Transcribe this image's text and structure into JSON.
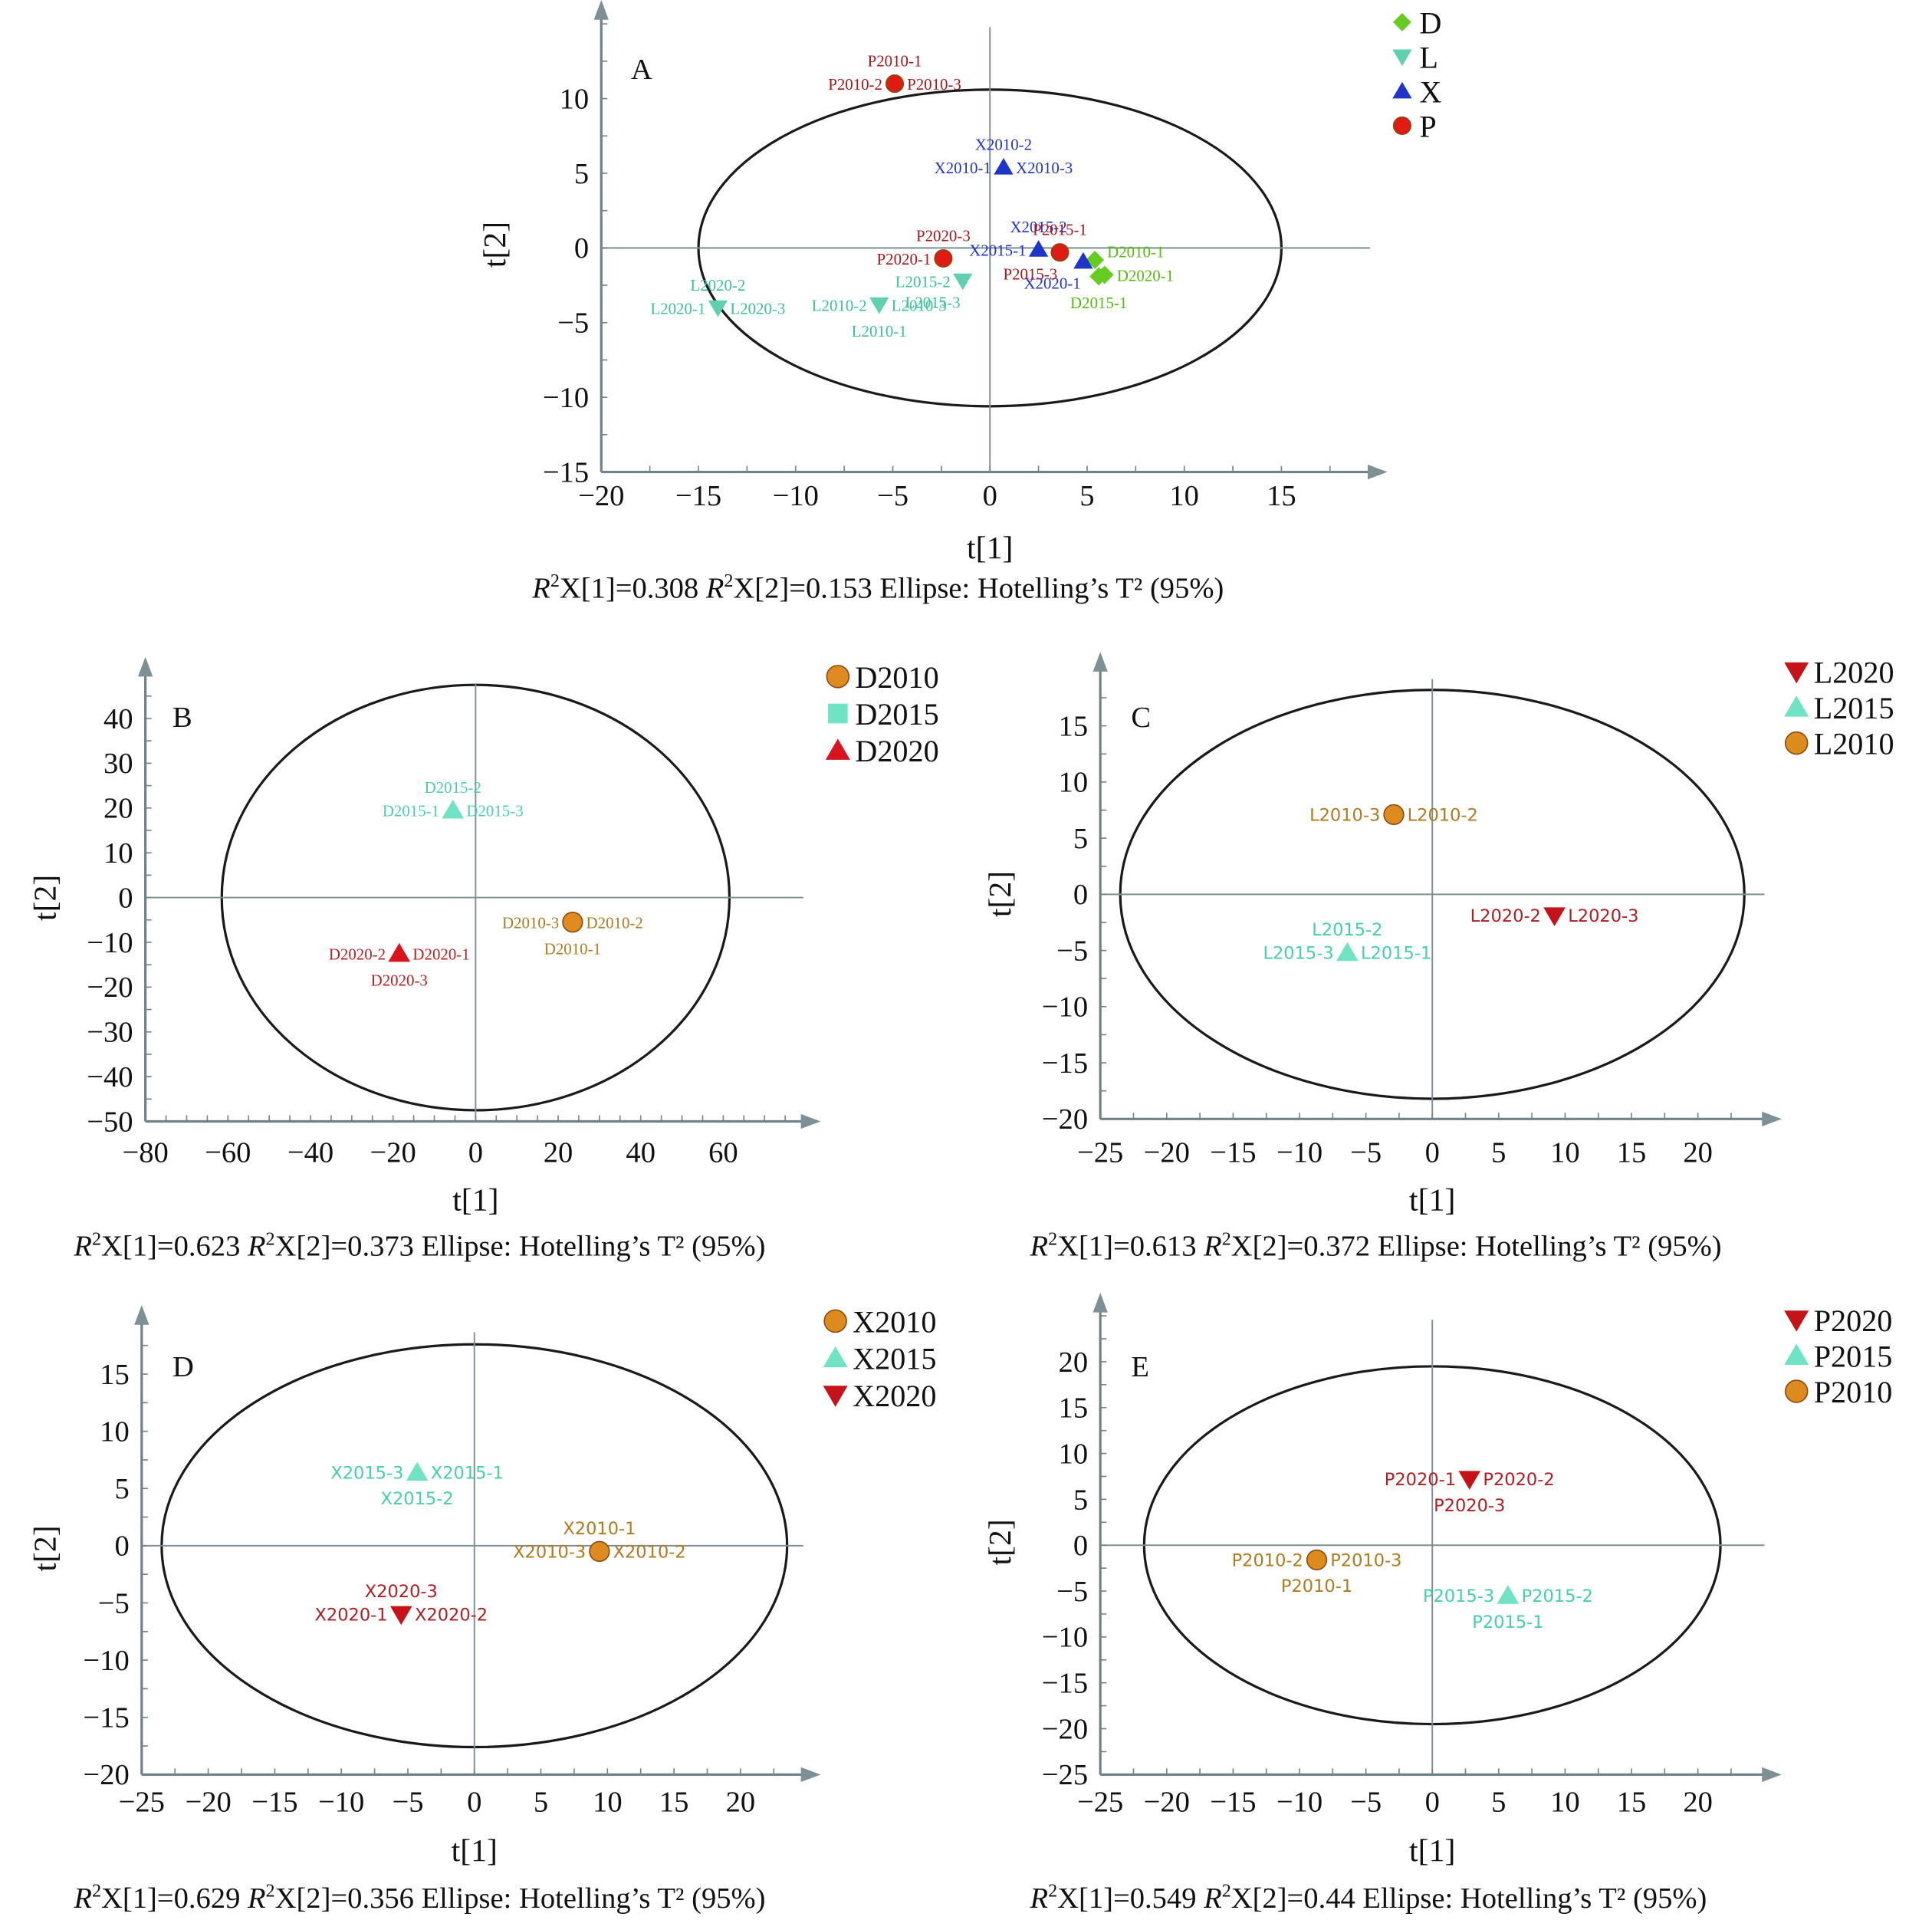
{
  "chart_data": [
    {
      "id": "A",
      "type": "scatter",
      "panel_label": "A",
      "xlabel": "t[1]",
      "ylabel": "t[2]",
      "xlim": [
        -20,
        19
      ],
      "ylim": [
        -15,
        14
      ],
      "xticks": [
        -20,
        -15,
        -10,
        -5,
        0,
        5,
        10,
        15
      ],
      "yticks": [
        -15,
        -10,
        -5,
        0,
        5,
        10
      ],
      "ellipse": {
        "rx": 15,
        "ry": 10.6
      },
      "caption": {
        "r2x1": "0.308",
        "r2x2": "0.153",
        "ellipse_text": "Ellipse: Hotelling’s T² (95%)"
      },
      "legend_position": "top-right",
      "label_font": "serif",
      "series": [
        {
          "name": "D",
          "marker": "diamond",
          "color": "#66cc22",
          "label_color": "#55bb11",
          "legend_marker": "diamond",
          "points": [
            {
              "x": 5.4,
              "y": -0.8,
              "labels": [
                {
                  "text": "D2010-1",
                  "pos": "right-up"
                }
              ]
            },
            {
              "x": 5.6,
              "y": -1.9,
              "labels": [
                {
                  "text": "D2015-1",
                  "pos": "below"
                }
              ]
            },
            {
              "x": 5.9,
              "y": -1.8,
              "labels": [
                {
                  "text": "D2020-1",
                  "pos": "right"
                }
              ]
            }
          ]
        },
        {
          "name": "L",
          "marker": "triangle-down",
          "color": "#5fd1b0",
          "label_color": "#3cc199",
          "legend_marker": "triangle-down",
          "points": [
            {
              "x": -14.0,
              "y": -4.0,
              "labels": [
                {
                  "text": "L2020-2",
                  "pos": "above"
                },
                {
                  "text": "L2020-1",
                  "pos": "left"
                },
                {
                  "text": "L2020-3",
                  "pos": "right"
                }
              ]
            },
            {
              "x": -5.7,
              "y": -3.8,
              "labels": [
                {
                  "text": "L2010-2",
                  "pos": "left"
                },
                {
                  "text": "L2010-3",
                  "pos": "right"
                },
                {
                  "text": "L2010-1",
                  "pos": "below"
                }
              ]
            },
            {
              "x": -1.4,
              "y": -2.2,
              "labels": [
                {
                  "text": "L2015-2",
                  "pos": "left"
                },
                {
                  "text": "L2015-3",
                  "pos": "below-left"
                }
              ]
            }
          ]
        },
        {
          "name": "X",
          "marker": "triangle-up",
          "color": "#1f35c8",
          "label_color": "#2233cc",
          "legend_marker": "triangle-up",
          "points": [
            {
              "x": 0.7,
              "y": 5.4,
              "labels": [
                {
                  "text": "X2010-2",
                  "pos": "above"
                },
                {
                  "text": "X2010-1",
                  "pos": "left"
                },
                {
                  "text": "X2010-3",
                  "pos": "right"
                }
              ]
            },
            {
              "x": 2.5,
              "y": -0.1,
              "labels": [
                {
                  "text": "X2015-1",
                  "pos": "left"
                },
                {
                  "text": "X2015-2",
                  "pos": "above"
                }
              ]
            },
            {
              "x": 4.8,
              "y": -0.9,
              "labels": [
                {
                  "text": "X2020-1",
                  "pos": "below-left"
                }
              ]
            }
          ]
        },
        {
          "name": "P",
          "marker": "circle",
          "color": "#e01b14",
          "label_color": "#a8161c",
          "legend_marker": "circle",
          "points": [
            {
              "x": -4.9,
              "y": 11.0,
              "labels": [
                {
                  "text": "P2010-1",
                  "pos": "above"
                },
                {
                  "text": "P2010-2",
                  "pos": "left"
                },
                {
                  "text": "P2010-3",
                  "pos": "right"
                }
              ]
            },
            {
              "x": -2.4,
              "y": -0.7,
              "labels": [
                {
                  "text": "P2020-3",
                  "pos": "above"
                },
                {
                  "text": "P2020-1",
                  "pos": "left"
                }
              ]
            },
            {
              "x": 3.6,
              "y": -0.3,
              "labels": [
                {
                  "text": "P2015-1",
                  "pos": "above"
                },
                {
                  "text": "P2015-3",
                  "pos": "below-left"
                }
              ]
            }
          ]
        }
      ]
    },
    {
      "id": "B",
      "type": "scatter",
      "panel_label": "B",
      "xlabel": "t[1]",
      "ylabel": "t[2]",
      "xlim": [
        -80,
        78
      ],
      "ylim": [
        -50,
        50
      ],
      "xticks": [
        -80,
        -60,
        -40,
        -20,
        0,
        20,
        40,
        60
      ],
      "yticks": [
        -50,
        -40,
        -30,
        -20,
        -10,
        0,
        10,
        20,
        30,
        40
      ],
      "ellipse": {
        "rx": 61.5,
        "ry": 47.5
      },
      "caption": {
        "r2x1": "0.623",
        "r2x2": "0.373",
        "ellipse_text": "Ellipse: Hotelling’s T² (95%)"
      },
      "legend_position": "top-right",
      "label_font": "serif",
      "series": [
        {
          "name": "D2010",
          "marker": "circle",
          "color": "#e08a22",
          "label_color": "#b07a1e",
          "legend_marker": "circle",
          "points": [
            {
              "x": 23.5,
              "y": -5.5,
              "labels": [
                {
                  "text": "D2010-3",
                  "pos": "left"
                },
                {
                  "text": "D2010-2",
                  "pos": "right"
                },
                {
                  "text": "D2010-1",
                  "pos": "below"
                }
              ]
            }
          ]
        },
        {
          "name": "D2015",
          "marker": "triangle-up",
          "color": "#6fe3c4",
          "label_color": "#4ccfae",
          "legend_marker": "square",
          "points": [
            {
              "x": -5.5,
              "y": 19.5,
              "labels": [
                {
                  "text": "D2015-2",
                  "pos": "above"
                },
                {
                  "text": "D2015-1",
                  "pos": "left"
                },
                {
                  "text": "D2015-3",
                  "pos": "right"
                }
              ]
            }
          ]
        },
        {
          "name": "D2020",
          "marker": "triangle-up",
          "color": "#d9141c",
          "label_color": "#b81f22",
          "legend_marker": "triangle-up",
          "points": [
            {
              "x": -18.5,
              "y": -12.5,
              "labels": [
                {
                  "text": "D2020-2",
                  "pos": "left"
                },
                {
                  "text": "D2020-1",
                  "pos": "right"
                },
                {
                  "text": "D2020-3",
                  "pos": "below"
                }
              ]
            }
          ]
        }
      ]
    },
    {
      "id": "C",
      "type": "scatter",
      "panel_label": "C",
      "xlabel": "t[1]",
      "ylabel": "t[2]",
      "xlim": [
        -25,
        24.5
      ],
      "ylim": [
        -20,
        19
      ],
      "xticks": [
        -25,
        -20,
        -15,
        -10,
        -5,
        0,
        5,
        10,
        15,
        20
      ],
      "yticks": [
        -20,
        -15,
        -10,
        -5,
        0,
        5,
        10,
        15
      ],
      "ellipse": {
        "rx": 23.5,
        "ry": 18.2
      },
      "caption": {
        "r2x1": "0.613",
        "r2x2": "0.372",
        "ellipse_text": "Ellipse: Hotelling’s T² (95%)"
      },
      "legend_position": "top-right",
      "label_font": "sans",
      "series": [
        {
          "name": "L2020",
          "marker": "triangle-down",
          "color": "#c41419",
          "label_color": "#b01d22",
          "legend_marker": "triangle-down",
          "points": [
            {
              "x": 9.2,
              "y": -1.9,
              "labels": [
                {
                  "text": "L2020-2",
                  "pos": "left"
                },
                {
                  "text": "L2020-3",
                  "pos": "right"
                }
              ]
            }
          ]
        },
        {
          "name": "L2015",
          "marker": "triangle-up",
          "color": "#6fe3c4",
          "label_color": "#45cfaa",
          "legend_marker": "triangle-up",
          "points": [
            {
              "x": -6.4,
              "y": -5.2,
              "labels": [
                {
                  "text": "L2015-2",
                  "pos": "above"
                },
                {
                  "text": "L2015-3",
                  "pos": "left"
                },
                {
                  "text": "L2015-1",
                  "pos": "right"
                }
              ]
            }
          ]
        },
        {
          "name": "L2010",
          "marker": "circle",
          "color": "#dd8a1e",
          "label_color": "#b07a1e",
          "legend_marker": "circle",
          "points": [
            {
              "x": -2.9,
              "y": 7.1,
              "labels": [
                {
                  "text": "L2010-3",
                  "pos": "left"
                },
                {
                  "text": "L2010-2",
                  "pos": "right"
                }
              ]
            }
          ]
        }
      ]
    },
    {
      "id": "D",
      "type": "scatter",
      "panel_label": "D",
      "xlabel": "t[1]",
      "ylabel": "t[2]",
      "xlim": [
        -25,
        24.5
      ],
      "ylim": [
        -20,
        19
      ],
      "xticks": [
        -25,
        -20,
        -15,
        -10,
        -5,
        0,
        5,
        10,
        15,
        20
      ],
      "yticks": [
        -20,
        -15,
        -10,
        -5,
        0,
        5,
        10,
        15
      ],
      "ellipse": {
        "rx": 23.5,
        "ry": 17.6
      },
      "caption": {
        "r2x1": "0.629",
        "r2x2": "0.356",
        "ellipse_text": "Ellipse: Hotelling’s T² (95%)"
      },
      "legend_position": "top-right",
      "label_font": "sans",
      "series": [
        {
          "name": "X2010",
          "marker": "circle",
          "color": "#dd8a1e",
          "label_color": "#b07a1e",
          "legend_marker": "circle",
          "points": [
            {
              "x": 9.4,
              "y": -0.5,
              "labels": [
                {
                  "text": "X2010-1",
                  "pos": "above"
                },
                {
                  "text": "X2010-3",
                  "pos": "left"
                },
                {
                  "text": "X2010-2",
                  "pos": "right"
                }
              ]
            }
          ]
        },
        {
          "name": "X2015",
          "marker": "triangle-up",
          "color": "#6fe3c4",
          "label_color": "#45cfaa",
          "legend_marker": "triangle-up",
          "points": [
            {
              "x": -4.3,
              "y": 6.4,
              "labels": [
                {
                  "text": "X2015-3",
                  "pos": "left"
                },
                {
                  "text": "X2015-1",
                  "pos": "right"
                },
                {
                  "text": "X2015-2",
                  "pos": "below"
                }
              ]
            }
          ]
        },
        {
          "name": "X2020",
          "marker": "triangle-down",
          "color": "#c41419",
          "label_color": "#b01d22",
          "legend_marker": "triangle-down",
          "points": [
            {
              "x": -5.5,
              "y": -6.0,
              "labels": [
                {
                  "text": "X2020-3",
                  "pos": "above"
                },
                {
                  "text": "X2020-1",
                  "pos": "left"
                },
                {
                  "text": "X2020-2",
                  "pos": "right"
                }
              ]
            }
          ]
        }
      ]
    },
    {
      "id": "E",
      "type": "scatter",
      "panel_label": "E",
      "xlabel": "t[1]",
      "ylabel": "t[2]",
      "xlim": [
        -25,
        24.5
      ],
      "ylim": [
        -25,
        23
      ],
      "xticks": [
        -25,
        -20,
        -15,
        -10,
        -5,
        0,
        5,
        10,
        15,
        20
      ],
      "yticks": [
        -25,
        -20,
        -15,
        -10,
        -5,
        0,
        5,
        10,
        15,
        20
      ],
      "ellipse": {
        "rx": 21.7,
        "ry": 19.5
      },
      "caption": {
        "r2x1": "0.549",
        "r2x2": "0.44",
        "ellipse_text": "Ellipse: Hotelling’s T² (95%)"
      },
      "legend_position": "top-right",
      "label_font": "sans",
      "series": [
        {
          "name": "P2020",
          "marker": "triangle-down",
          "color": "#c41419",
          "label_color": "#b01d22",
          "legend_marker": "triangle-down",
          "points": [
            {
              "x": 2.8,
              "y": 7.2,
              "labels": [
                {
                  "text": "P2020-1",
                  "pos": "left"
                },
                {
                  "text": "P2020-2",
                  "pos": "right"
                },
                {
                  "text": "P2020-3",
                  "pos": "below"
                }
              ]
            }
          ]
        },
        {
          "name": "P2015",
          "marker": "triangle-up",
          "color": "#6fe3c4",
          "label_color": "#45cfaa",
          "legend_marker": "triangle-up",
          "points": [
            {
              "x": 5.7,
              "y": -5.5,
              "labels": [
                {
                  "text": "P2015-3",
                  "pos": "left"
                },
                {
                  "text": "P2015-2",
                  "pos": "right"
                },
                {
                  "text": "P2015-1",
                  "pos": "below"
                }
              ]
            }
          ]
        },
        {
          "name": "P2010",
          "marker": "circle",
          "color": "#dd8a1e",
          "label_color": "#b07a1e",
          "legend_marker": "circle",
          "points": [
            {
              "x": -8.7,
              "y": -1.6,
              "labels": [
                {
                  "text": "P2010-2",
                  "pos": "left"
                },
                {
                  "text": "P2010-3",
                  "pos": "right"
                },
                {
                  "text": "P2010-1",
                  "pos": "below"
                }
              ]
            }
          ]
        }
      ]
    }
  ]
}
